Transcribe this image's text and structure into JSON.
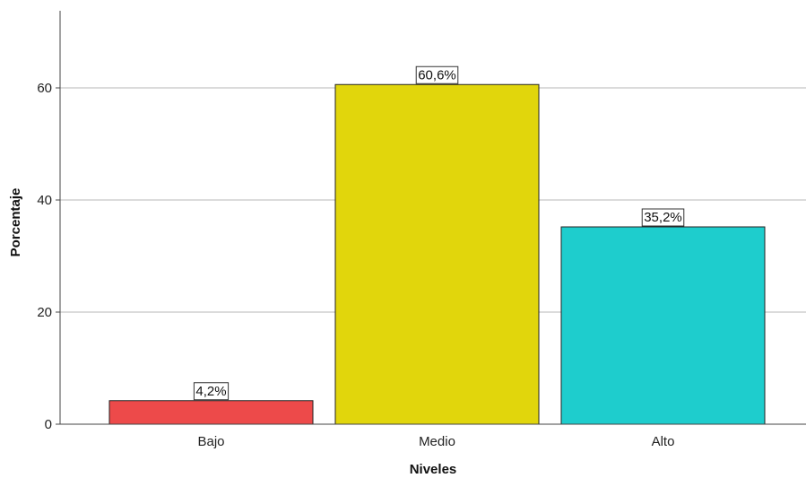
{
  "chart_data": {
    "type": "bar",
    "categories": [
      "Bajo",
      "Medio",
      "Alto"
    ],
    "values": [
      4.2,
      60.6,
      35.2
    ],
    "data_labels": [
      "4,2%",
      "60,6%",
      "35,2%"
    ],
    "colors": [
      "#ed4a4a",
      "#e1d60c",
      "#1ecdcd"
    ],
    "xlabel": "Niveles",
    "ylabel": "Porcentaje",
    "ylim": [
      0,
      73
    ],
    "yticks": [
      0,
      20,
      40,
      60
    ],
    "ytick_labels": [
      "0",
      "20",
      "40",
      "60"
    ],
    "grid": true,
    "legend": false
  }
}
